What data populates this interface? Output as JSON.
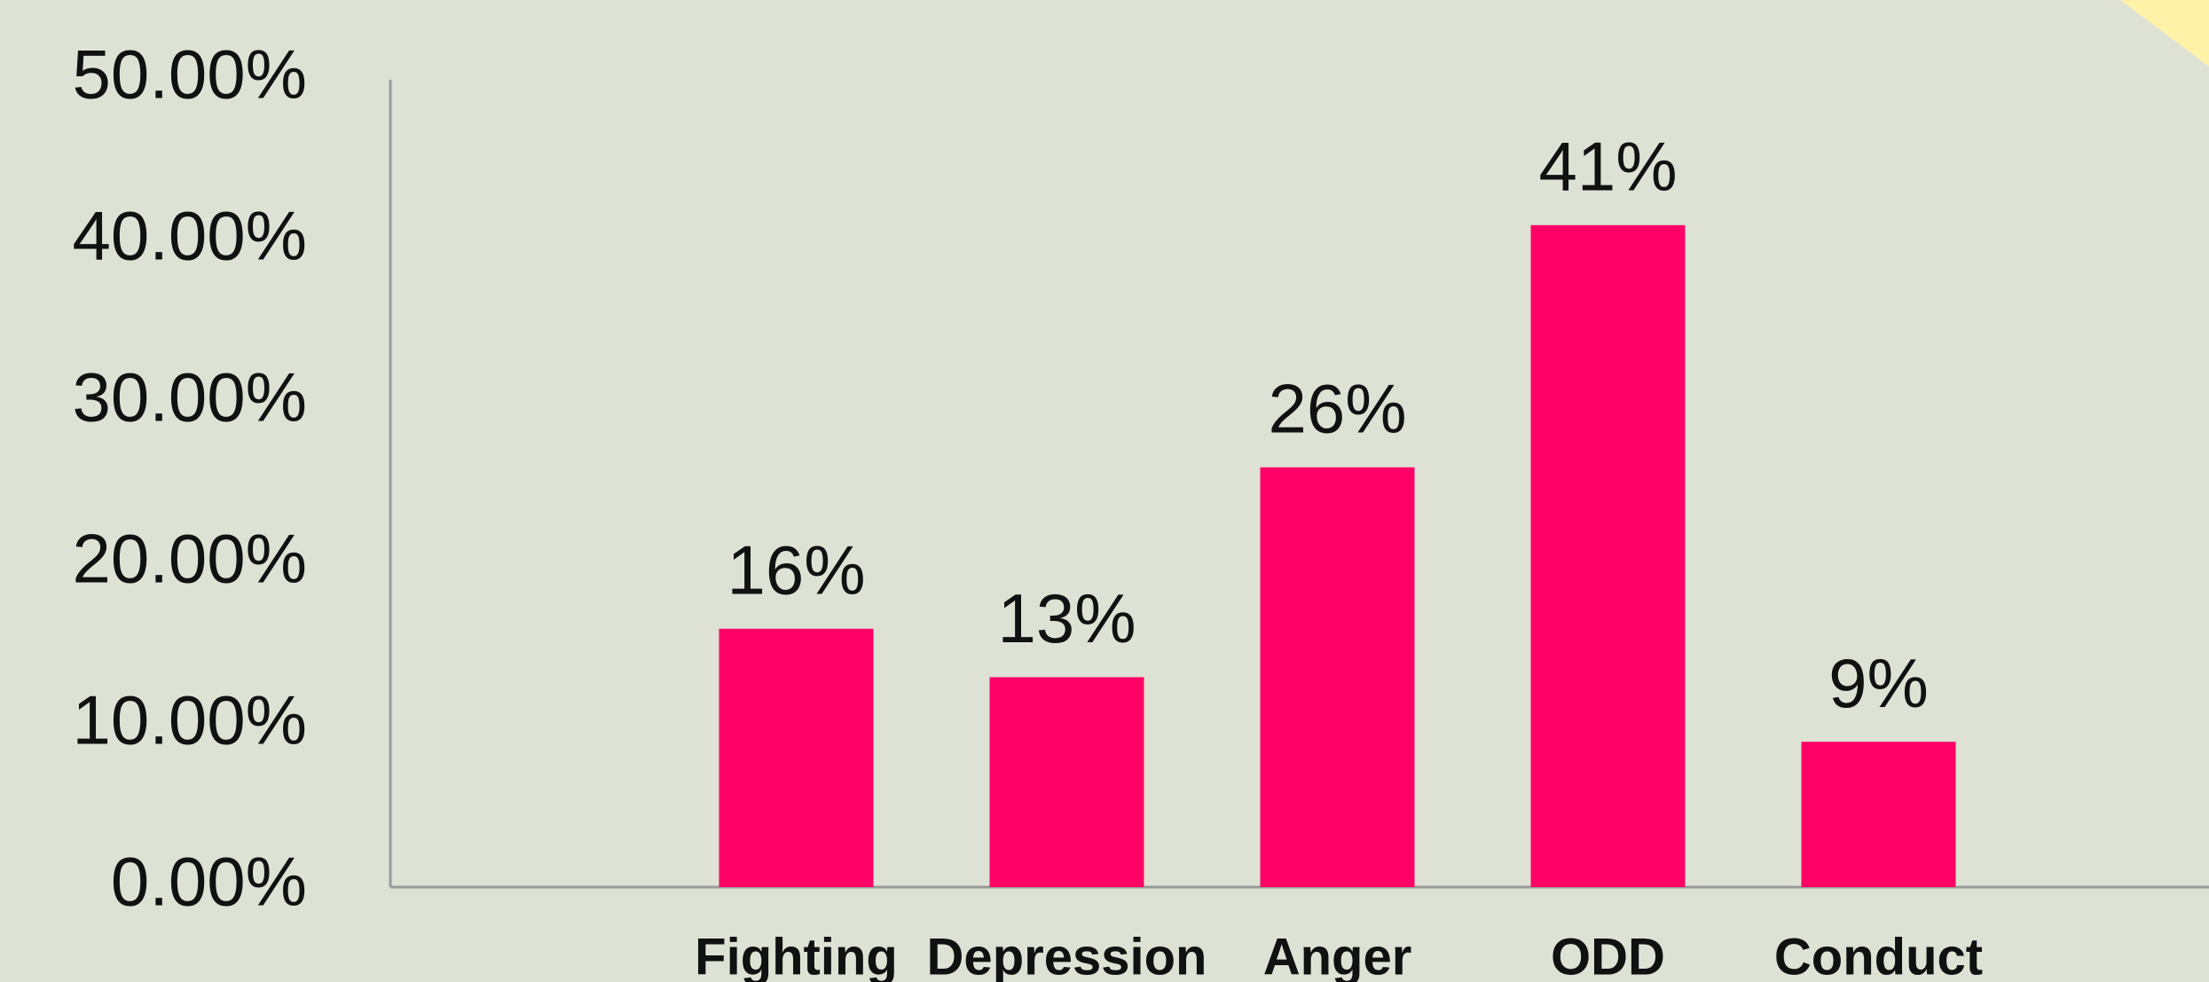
{
  "chart_data": {
    "type": "bar",
    "categories": [
      "Fighting",
      "Depression",
      "Anger",
      "ODD",
      "Conduct"
    ],
    "values": [
      16,
      13,
      26,
      41,
      9
    ],
    "value_labels": [
      "16%",
      "13%",
      "26%",
      "41%",
      "9%"
    ],
    "color": "#fe0066",
    "ylim": [
      0,
      50
    ],
    "yticks": [
      {
        "value": 0,
        "label": "0.00%"
      },
      {
        "value": 10,
        "label": "10.00%"
      },
      {
        "value": 20,
        "label": "20.00%"
      },
      {
        "value": 30,
        "label": "30.00%"
      },
      {
        "value": 40,
        "label": "40.00%"
      },
      {
        "value": 50,
        "label": "50.00%"
      }
    ],
    "grid": false
  }
}
